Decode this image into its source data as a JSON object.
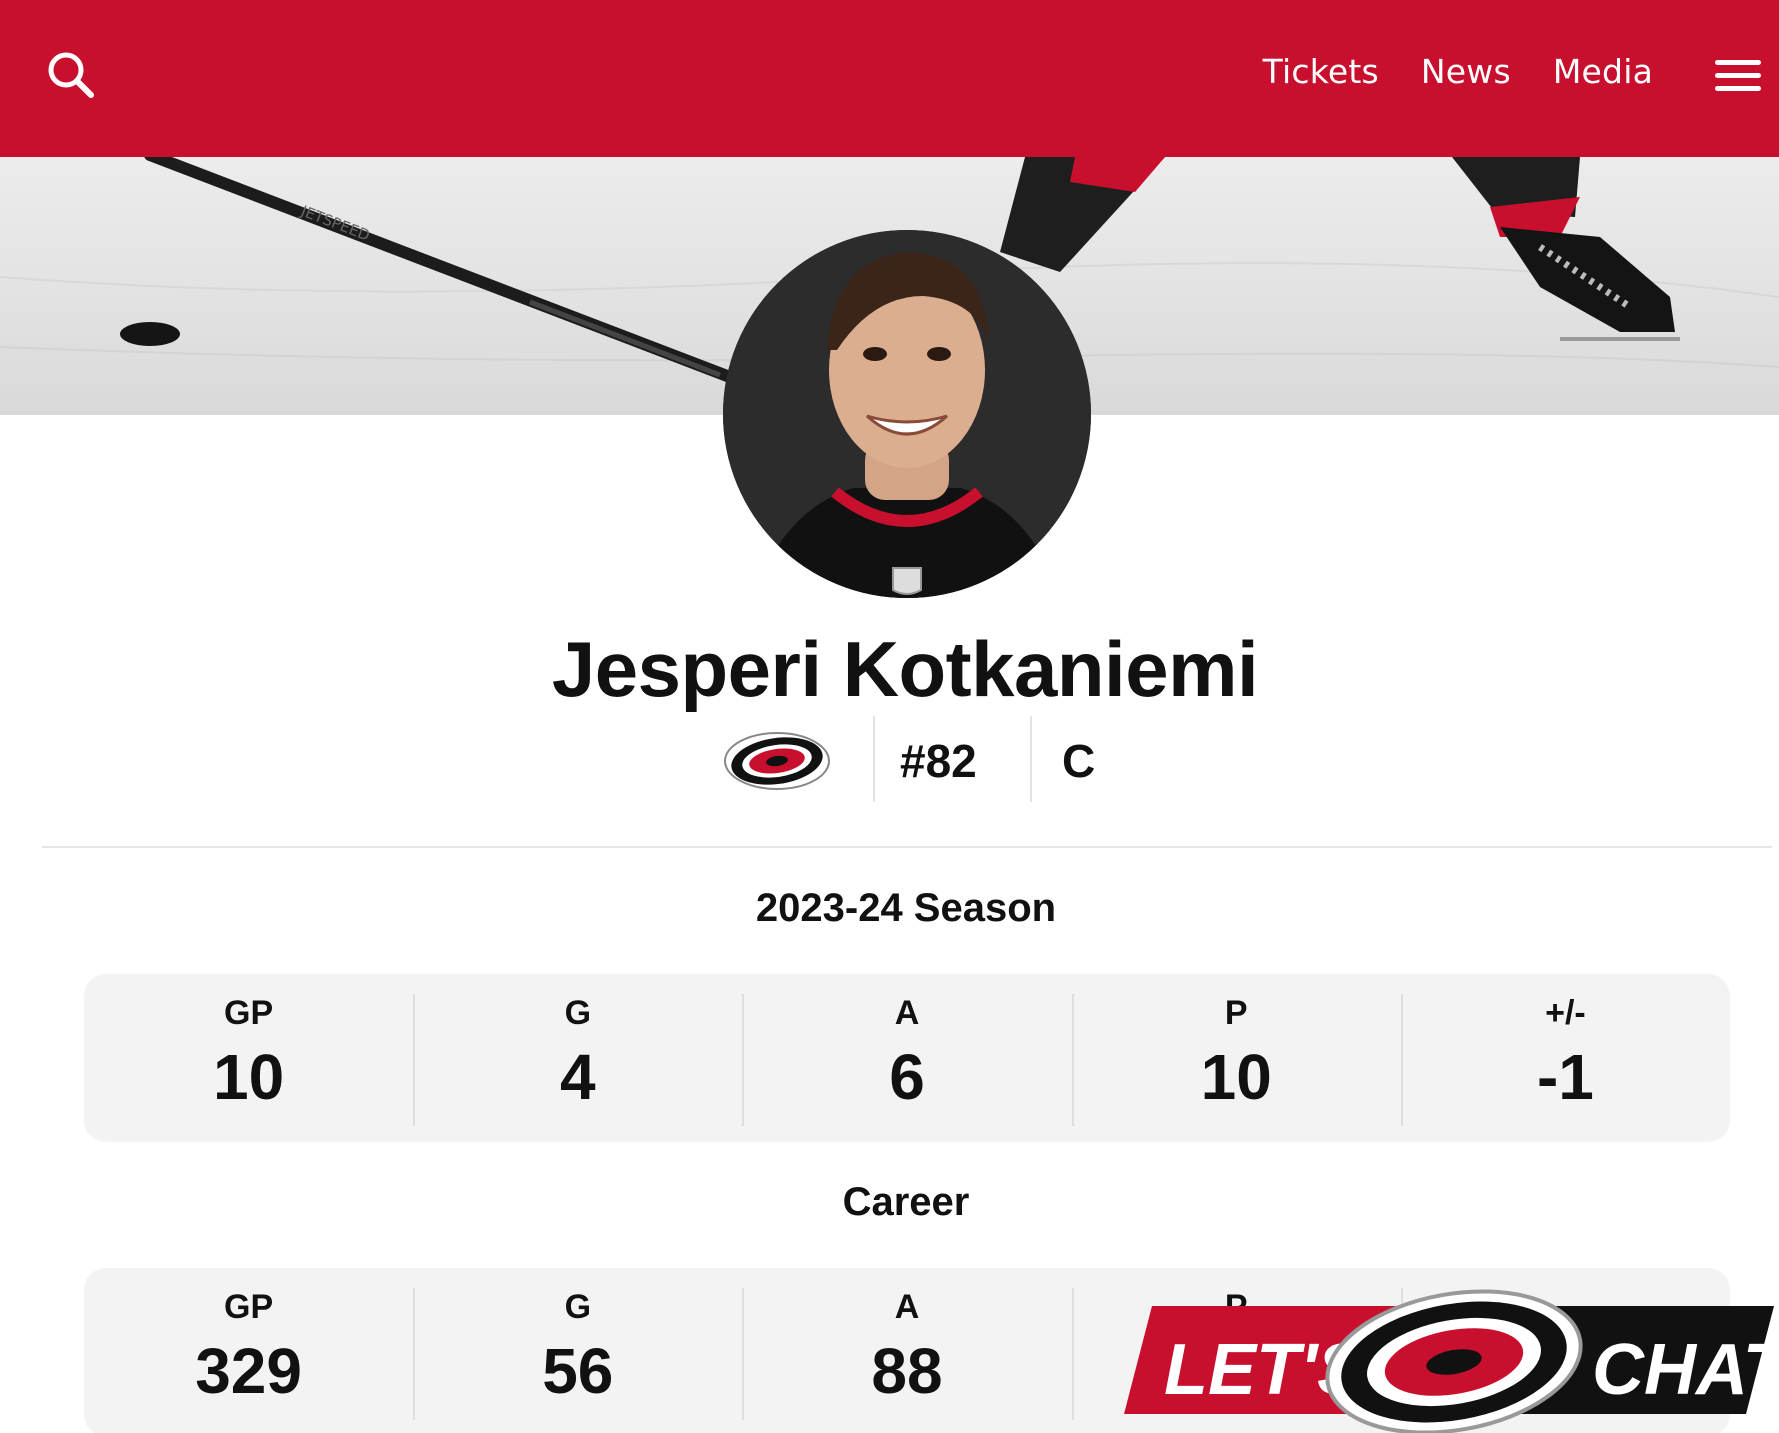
{
  "header": {
    "nav": [
      "Tickets",
      "News",
      "Media"
    ],
    "icons": [
      "search-icon",
      "hamburger-menu-icon"
    ],
    "brand_color": "#c8102e"
  },
  "hero": {
    "stick_text": "JETSPEED"
  },
  "player": {
    "name": "Jesperi Kotkaniemi",
    "number": "#82",
    "position": "C",
    "team_logo": "hurricanes-logo"
  },
  "season": {
    "title": "2023-24 Season",
    "stats": [
      {
        "label": "GP",
        "value": "10"
      },
      {
        "label": "G",
        "value": "4"
      },
      {
        "label": "A",
        "value": "6"
      },
      {
        "label": "P",
        "value": "10"
      },
      {
        "label": "+/-",
        "value": "-1"
      }
    ]
  },
  "career": {
    "title": "Career",
    "stats": [
      {
        "label": "GP",
        "value": "329"
      },
      {
        "label": "G",
        "value": "56"
      },
      {
        "label": "A",
        "value": "88"
      },
      {
        "label": "P",
        "value": ""
      },
      {
        "label": "",
        "value": ""
      }
    ]
  },
  "chat": {
    "left": "LET'S",
    "right": "CHAT"
  }
}
